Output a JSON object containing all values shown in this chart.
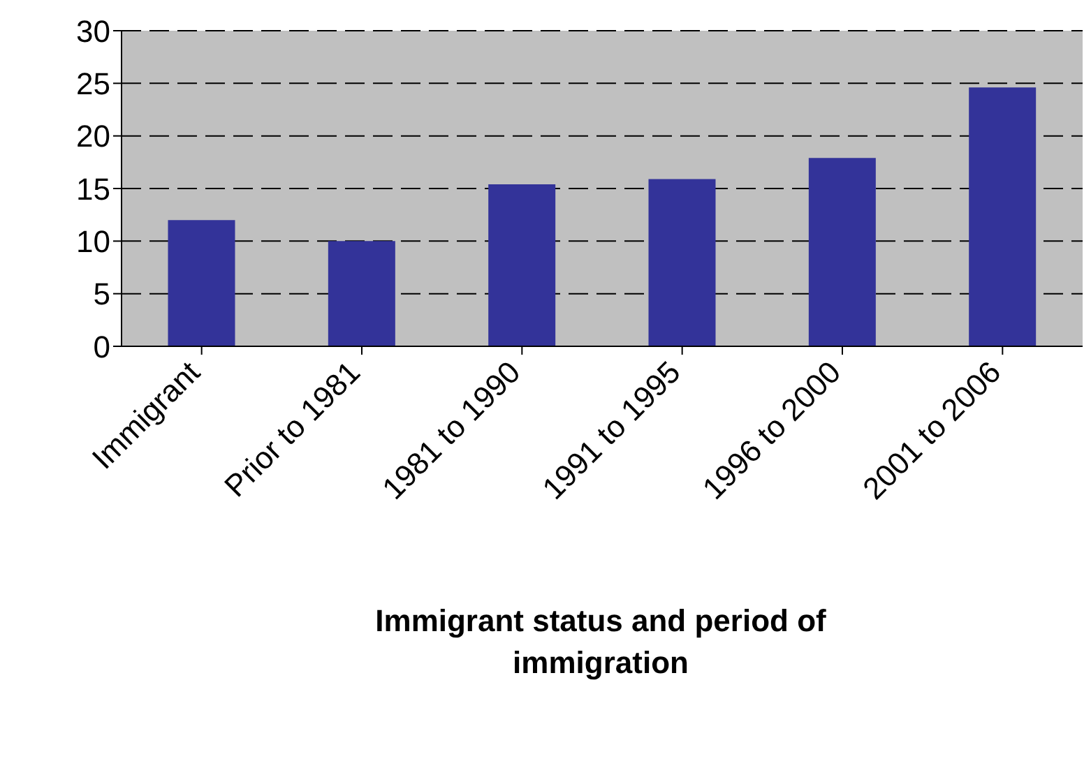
{
  "chart_data": {
    "type": "bar",
    "xlabel": "Immigrant status and period of immigration",
    "categories": [
      "Immigrant",
      "Prior to 1981",
      "1981 to 1990",
      "1991 to 1995",
      "1996 to 2000",
      "2001 to 2006"
    ],
    "values": [
      12,
      10,
      15.4,
      15.9,
      17.9,
      24.6
    ],
    "color": "#333399",
    "ylim": [
      0,
      30
    ],
    "yticks": [
      0,
      5,
      10,
      15,
      20,
      25,
      30
    ],
    "grid": "y"
  }
}
